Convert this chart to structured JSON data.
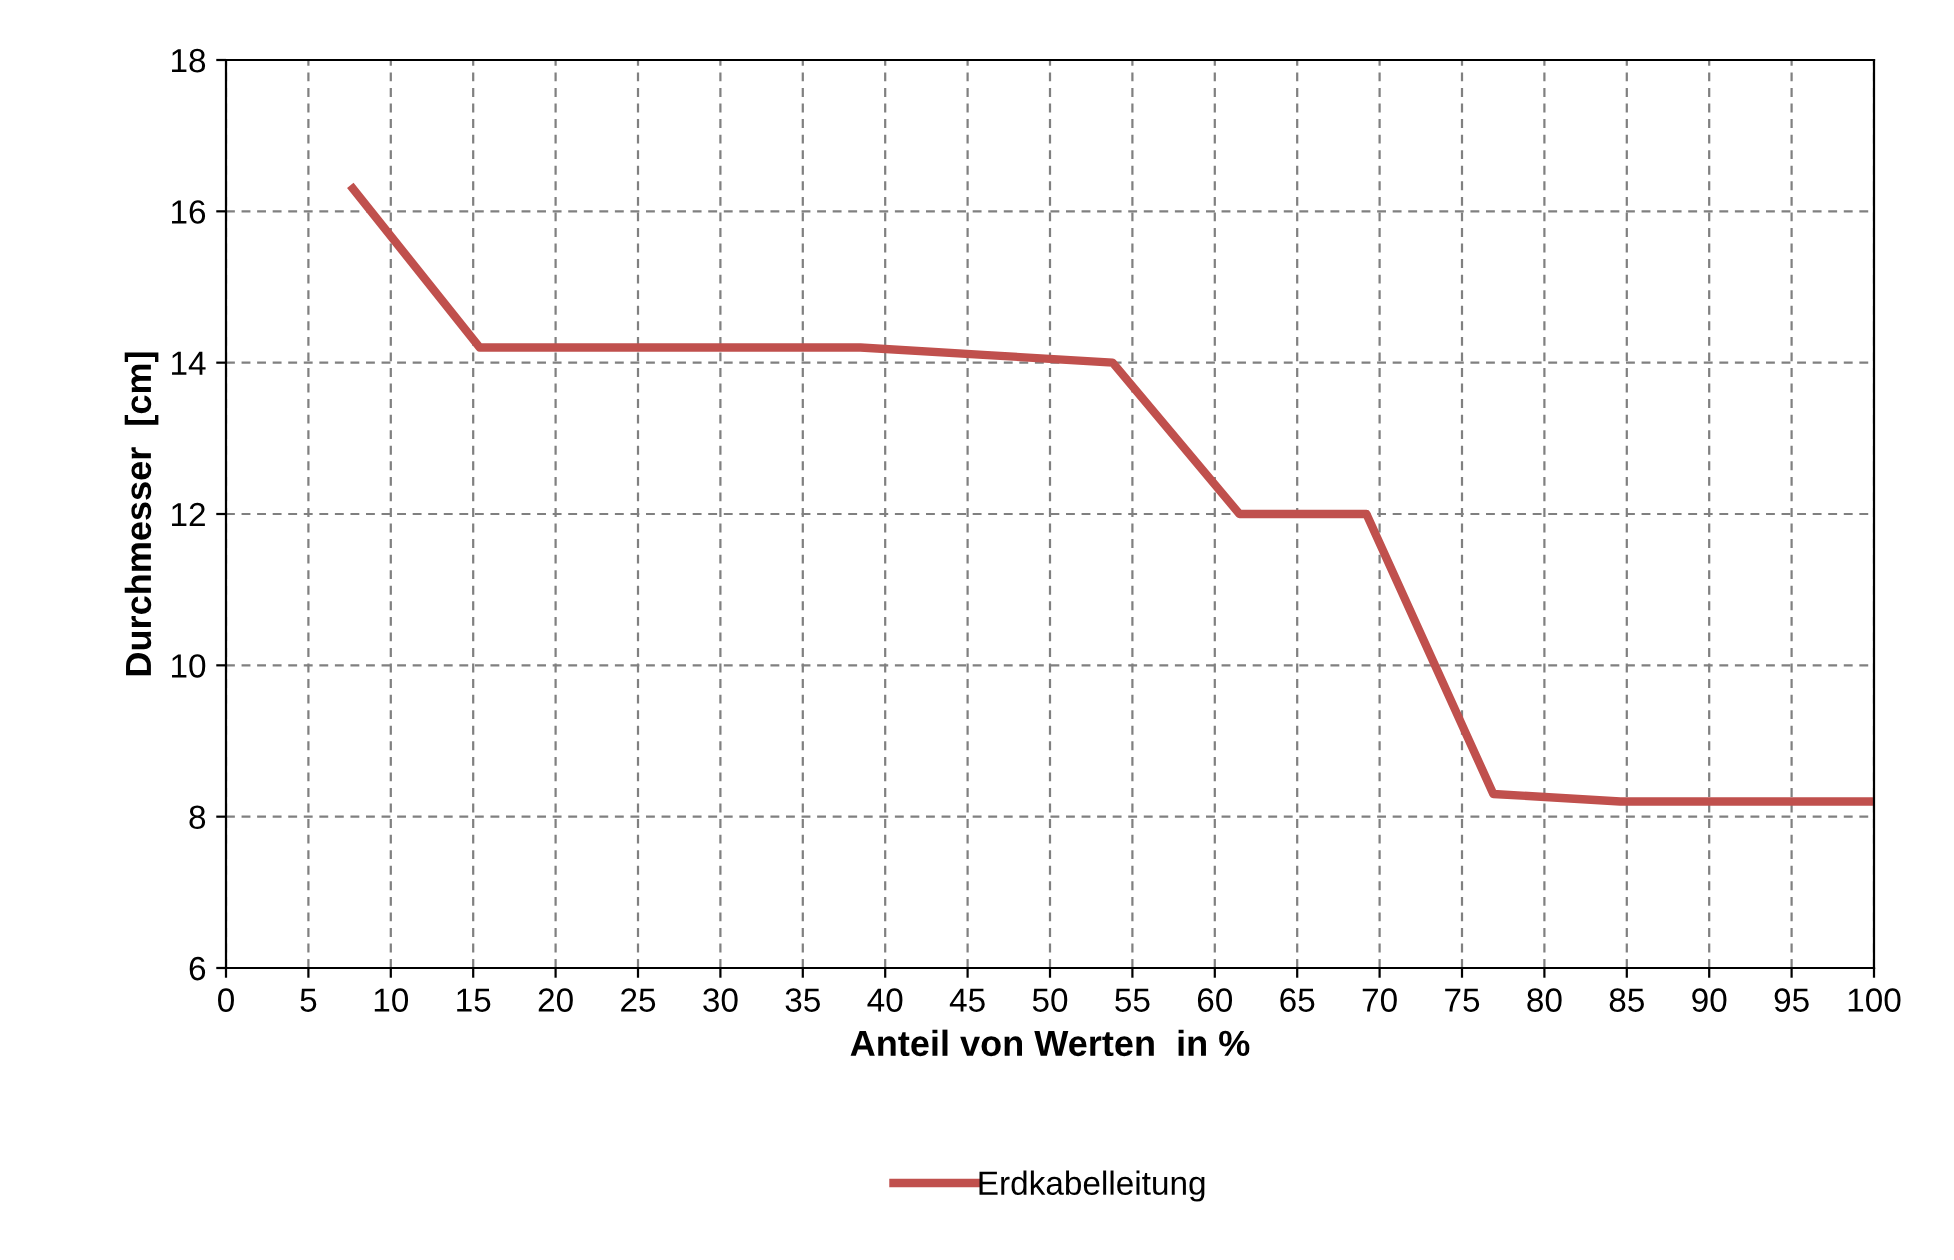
{
  "chart_data": {
    "type": "line",
    "xlabel": "Anteil von Werten  in %",
    "ylabel": "Durchmesser  [cm]",
    "x": [
      7.7,
      15.4,
      23.1,
      30.8,
      38.5,
      46.2,
      53.8,
      61.5,
      69.2,
      76.9,
      84.6,
      92.3,
      100
    ],
    "series": [
      {
        "name": "Erdkabelleitung",
        "color": "#c0504d",
        "values": [
          16.3,
          14.2,
          14.2,
          14.2,
          14.2,
          14.1,
          14.0,
          12.0,
          12.0,
          8.3,
          8.2,
          8.2,
          8.2
        ]
      }
    ],
    "xlim": [
      0,
      100
    ],
    "xticks": [
      0,
      5,
      10,
      15,
      20,
      25,
      30,
      35,
      40,
      45,
      50,
      55,
      60,
      65,
      70,
      75,
      80,
      85,
      90,
      95,
      100
    ],
    "ylim": [
      6,
      18
    ],
    "yticks": [
      6,
      8,
      10,
      12,
      14,
      16,
      18
    ],
    "grid": true,
    "legend": "bottom",
    "marker": "none",
    "line_style": "solid"
  }
}
